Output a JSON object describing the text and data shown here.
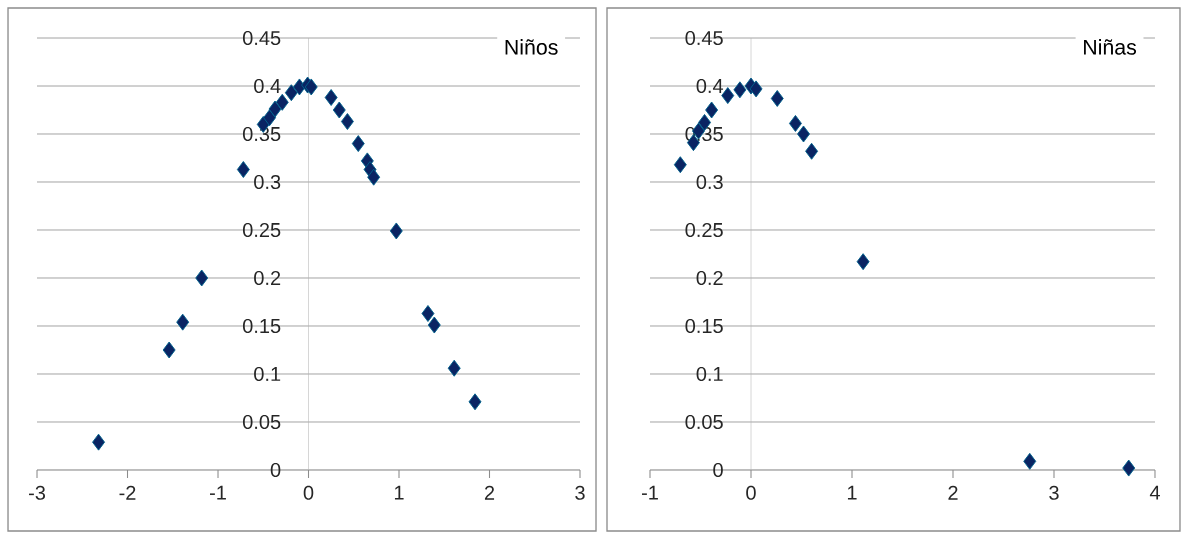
{
  "chart_data": [
    {
      "type": "scatter",
      "title": "Niños",
      "marker": "diamond",
      "grid": "y",
      "color": "#0a2463",
      "x": [
        -2.32,
        -1.54,
        -1.39,
        -1.18,
        -0.72,
        -0.5,
        -0.43,
        -0.37,
        -0.29,
        -0.19,
        -0.1,
        -0.01,
        0.03,
        0.25,
        0.34,
        0.43,
        0.55,
        0.65,
        0.68,
        0.72,
        0.97,
        1.32,
        1.39,
        1.61,
        1.84
      ],
      "values": [
        0.029,
        0.125,
        0.154,
        0.2,
        0.313,
        0.36,
        0.367,
        0.376,
        0.383,
        0.393,
        0.399,
        0.401,
        0.399,
        0.388,
        0.375,
        0.363,
        0.34,
        0.322,
        0.313,
        0.305,
        0.249,
        0.163,
        0.151,
        0.106,
        0.071
      ],
      "xlim": [
        -3,
        3
      ],
      "ylim": [
        0,
        0.45
      ],
      "xticks": [
        -3,
        -2,
        -1,
        0,
        1,
        2,
        3
      ],
      "yticks": [
        0,
        0.05,
        0.1,
        0.15,
        0.2,
        0.25,
        0.3,
        0.35,
        0.4,
        0.45
      ]
    },
    {
      "type": "scatter",
      "title": "Niñas",
      "marker": "diamond",
      "grid": "y",
      "color": "#0a2463",
      "x": [
        -0.7,
        -0.57,
        -0.52,
        -0.46,
        -0.39,
        -0.23,
        -0.11,
        0,
        0.05,
        0.26,
        0.44,
        0.52,
        0.6,
        1.11,
        2.76,
        3.74
      ],
      "values": [
        0.318,
        0.341,
        0.353,
        0.362,
        0.375,
        0.39,
        0.396,
        0.4,
        0.397,
        0.387,
        0.361,
        0.35,
        0.332,
        0.217,
        0.009,
        0.002
      ],
      "xlim": [
        -1,
        4
      ],
      "ylim": [
        0,
        0.45
      ],
      "xticks": [
        -1,
        0,
        1,
        2,
        3,
        4
      ],
      "yticks": [
        0,
        0.05,
        0.1,
        0.15,
        0.2,
        0.25,
        0.3,
        0.35,
        0.4,
        0.45
      ]
    }
  ]
}
